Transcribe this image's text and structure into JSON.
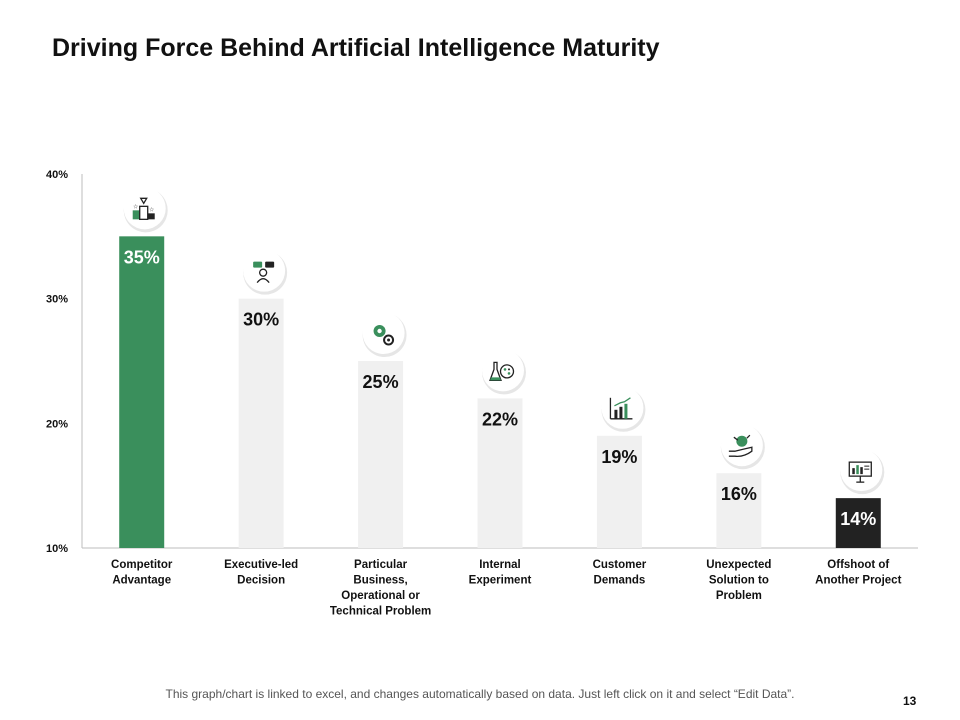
{
  "slide": {
    "title": "Driving Force Behind Artificial Intelligence Maturity",
    "footnote": "This graph/chart is linked to excel, and changes automatically based on data. Just left click on it and select “Edit Data”.",
    "page_number": "13"
  },
  "colors": {
    "highlight": "#3a8f5c",
    "bar": "#f0f0f0",
    "dark": "#222222",
    "axis": "#bdbdbd",
    "text": "#111111"
  },
  "chart_data": {
    "type": "bar",
    "title": "",
    "xlabel": "",
    "ylabel": "",
    "ylim": [
      10,
      40
    ],
    "yticks": [
      10,
      20,
      30,
      40
    ],
    "ytick_labels": [
      "10%",
      "20%",
      "30%",
      "40%"
    ],
    "grid": false,
    "categories": [
      [
        "Competitor",
        "Advantage"
      ],
      [
        "Executive-led",
        "Decision"
      ],
      [
        "Particular",
        "Business,",
        "Operational or",
        "Technical Problem"
      ],
      [
        "Internal",
        "Experiment"
      ],
      [
        "Customer",
        "Demands"
      ],
      [
        "Unexpected",
        "Solution to",
        "Problem"
      ],
      [
        "Offshoot of",
        "Another Project"
      ]
    ],
    "values": [
      35,
      30,
      25,
      22,
      19,
      16,
      14
    ],
    "data_labels": [
      "35%",
      "30%",
      "25%",
      "22%",
      "19%",
      "16%",
      "14%"
    ],
    "bar_styles": [
      "highlight",
      "bar",
      "bar",
      "bar",
      "bar",
      "bar",
      "dark"
    ],
    "icons": [
      "podium-trophy-icon",
      "executive-chat-icon",
      "gears-icon",
      "lab-flask-icon",
      "growth-chart-icon",
      "hand-idea-icon",
      "presentation-board-icon"
    ]
  }
}
